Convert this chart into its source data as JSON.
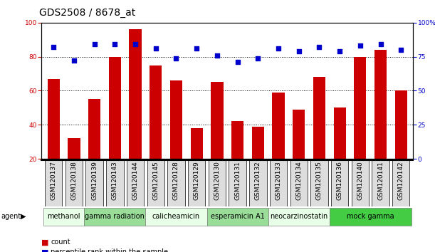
{
  "title": "GDS2508 / 8678_at",
  "samples": [
    "GSM120137",
    "GSM120138",
    "GSM120139",
    "GSM120143",
    "GSM120144",
    "GSM120145",
    "GSM120128",
    "GSM120129",
    "GSM120130",
    "GSM120131",
    "GSM120132",
    "GSM120133",
    "GSM120134",
    "GSM120135",
    "GSM120136",
    "GSM120140",
    "GSM120141",
    "GSM120142"
  ],
  "counts": [
    67,
    32,
    55,
    80,
    96,
    75,
    66,
    38,
    65,
    42,
    39,
    59,
    49,
    68,
    50,
    80,
    84,
    60
  ],
  "percentiles": [
    82,
    72,
    84,
    84,
    84,
    81,
    74,
    81,
    76,
    71,
    74,
    81,
    79,
    82,
    79,
    83,
    84,
    80
  ],
  "agents": [
    {
      "label": "methanol",
      "start": 0,
      "end": 2,
      "color": "#e8ffe8"
    },
    {
      "label": "gamma radiation",
      "start": 2,
      "end": 5,
      "color": "#99dd99"
    },
    {
      "label": "calicheamicin",
      "start": 5,
      "end": 8,
      "color": "#e8ffe8"
    },
    {
      "label": "esperamicin A1",
      "start": 8,
      "end": 11,
      "color": "#99dd99"
    },
    {
      "label": "neocarzinostatin",
      "start": 11,
      "end": 14,
      "color": "#e8ffe8"
    },
    {
      "label": "mock gamma",
      "start": 14,
      "end": 18,
      "color": "#44cc44"
    }
  ],
  "ylim_left": [
    20,
    100
  ],
  "ylim_right": [
    0,
    100
  ],
  "bar_color": "#cc0000",
  "dot_color": "#0000cc",
  "bg_color": "#ffffff",
  "title_fontsize": 10,
  "tick_fontsize": 6.5,
  "agent_fontsize": 7
}
